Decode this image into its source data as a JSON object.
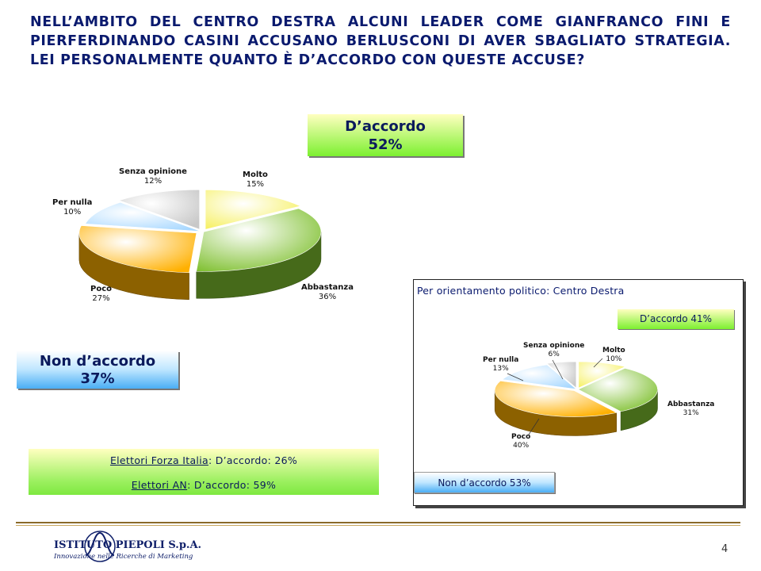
{
  "title": "NELL’AMBITO DEL CENTRO DESTRA ALCUNI LEADER COME GIANFRANCO FINI E PIERFERDINANDO CASINI ACCUSANO BERLUSCONI DI AVER SBAGLIATO STRATEGIA. LEI PERSONALMENTE QUANTO È D’ACCORDO CON QUESTE ACCUSE?",
  "summary": {
    "agree_label": "D’accordo",
    "agree_value": "52%",
    "disagree_label": "Non d’accordo",
    "disagree_value": "37%"
  },
  "voters": {
    "line1_group": "Elettori Forza Italia",
    "line1_rest": ": D’accordo: 26%",
    "line2_group": "Elettori AN",
    "line2_rest": ": D’accordo: 59%"
  },
  "panel": {
    "title": "Per orientamento politico: Centro Destra",
    "agree": "D’accordo 41%",
    "disagree": "Non d’accordo  53%"
  },
  "footer": {
    "company": "ISTITUTO PIEPOLI  S.p.A.",
    "tagline": "Innovazione nelle Ricerche di Marketing",
    "page": "4"
  },
  "chart_data": [
    {
      "type": "pie",
      "categories": [
        "Molto",
        "Abbastanza",
        "Poco",
        "Per nulla",
        "Senza opinione"
      ],
      "values": [
        15,
        36,
        27,
        10,
        12
      ],
      "labels": [
        "15%",
        "36%",
        "27%",
        "10%",
        "12%"
      ],
      "colors": [
        "#f6f060",
        "#7fc030",
        "#ffb000",
        "#a8d8ff",
        "#c8c8c8"
      ],
      "exploded": [
        "Molto",
        "Poco",
        "Senza opinione"
      ],
      "three_d": true
    },
    {
      "type": "pie",
      "categories": [
        "Molto",
        "Abbastanza",
        "Poco",
        "Per nulla",
        "Senza opinione"
      ],
      "values": [
        10,
        31,
        40,
        13,
        6
      ],
      "labels": [
        "10%",
        "31%",
        "40%",
        "13%",
        "6%"
      ],
      "colors": [
        "#f6f060",
        "#7fc030",
        "#ffb000",
        "#a8d8ff",
        "#c8c8c8"
      ],
      "exploded": [
        "Molto",
        "Poco",
        "Senza opinione"
      ],
      "three_d": true
    }
  ]
}
